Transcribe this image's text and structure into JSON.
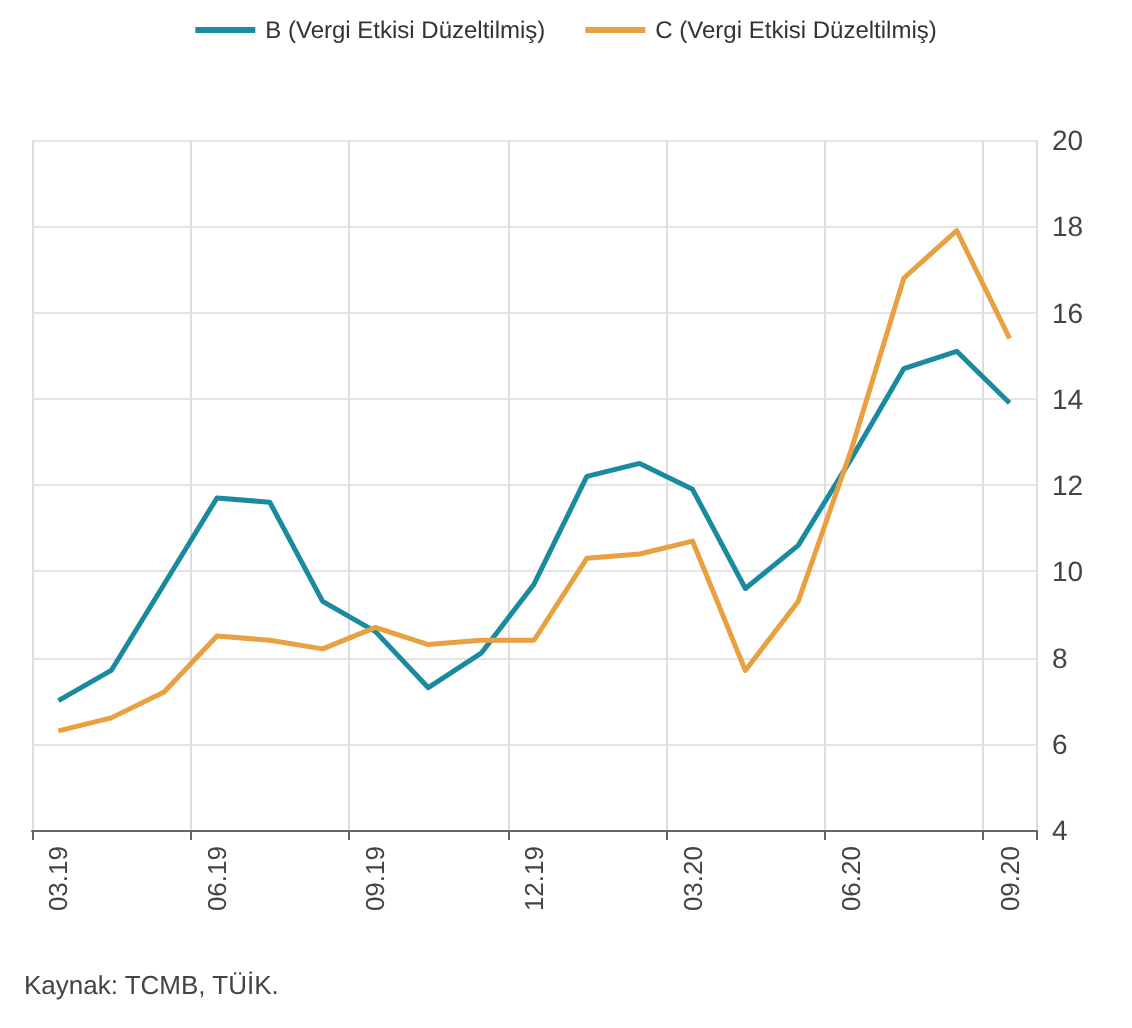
{
  "chart_data": {
    "type": "line",
    "categories": [
      "03.19",
      null,
      null,
      "06.19",
      null,
      null,
      "09.19",
      null,
      null,
      "12.19",
      null,
      null,
      "03.20",
      null,
      null,
      "06.20",
      null,
      null,
      "09.20"
    ],
    "series": [
      {
        "name": "B (Vergi Etkisi Düzeltilmiş)",
        "color": "#1a8a9e",
        "values": [
          7.0,
          7.7,
          9.7,
          11.7,
          11.6,
          9.3,
          8.6,
          7.3,
          8.1,
          9.7,
          12.2,
          12.5,
          11.9,
          9.6,
          10.6,
          12.6,
          14.7,
          15.1,
          13.9
        ]
      },
      {
        "name": "C (Vergi Etkisi Düzeltilmiş)",
        "color": "#e8a040",
        "values": [
          6.3,
          6.6,
          7.2,
          8.5,
          8.4,
          8.2,
          8.7,
          8.3,
          8.4,
          8.4,
          10.3,
          10.4,
          10.7,
          7.7,
          9.3,
          12.8,
          16.8,
          17.9,
          15.4
        ]
      }
    ],
    "ylim": [
      4,
      20
    ],
    "yticks": [
      4,
      6,
      8,
      10,
      12,
      14,
      16,
      18,
      20
    ],
    "grid": true,
    "legend": "top",
    "marker": "none",
    "line_style": "solid",
    "annotations": [
      "Kaynak: TCMB, TÜİK."
    ]
  }
}
